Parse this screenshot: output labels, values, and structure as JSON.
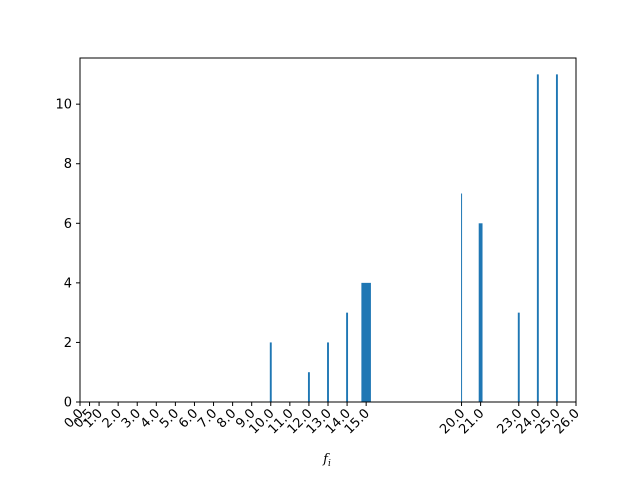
{
  "chart_data": {
    "type": "bar",
    "title": "",
    "xlabel": "f",
    "xlabel_sub": "i",
    "ylabel": "",
    "xlim": [
      0,
      26
    ],
    "ylim": [
      0,
      11.55
    ],
    "x_ticks": [
      0.0,
      0.5,
      1.0,
      2.0,
      3.0,
      4.0,
      5.0,
      6.0,
      7.0,
      8.0,
      9.0,
      10.0,
      11.0,
      12.0,
      13.0,
      14.0,
      15.0,
      20.0,
      21.0,
      23.0,
      24.0,
      25.0,
      26.0
    ],
    "x_tick_labels": [
      "0.0",
      "0.5",
      "1.0",
      "2.0",
      "3.0",
      "4.0",
      "5.0",
      "6.0",
      "7.0",
      "8.0",
      "9.0",
      "10.0",
      "11.0",
      "12.0",
      "13.0",
      "14.0",
      "15.0",
      "20.0",
      "21.0",
      "23.0",
      "24.0",
      "25.0",
      "26.0"
    ],
    "y_ticks": [
      0,
      2,
      4,
      6,
      8,
      10
    ],
    "y_tick_labels": [
      "0",
      "2",
      "4",
      "6",
      "8",
      "10"
    ],
    "bar_color": "#1f77b4",
    "bars": [
      {
        "x": 10.0,
        "width": 0.1,
        "value": 2
      },
      {
        "x": 12.0,
        "width": 0.1,
        "value": 1
      },
      {
        "x": 13.0,
        "width": 0.1,
        "value": 2
      },
      {
        "x": 14.0,
        "width": 0.1,
        "value": 3
      },
      {
        "x": 15.0,
        "width": 0.5,
        "value": 4
      },
      {
        "x": 20.0,
        "width": 0.05,
        "value": 7
      },
      {
        "x": 21.0,
        "width": 0.2,
        "value": 6
      },
      {
        "x": 23.0,
        "width": 0.1,
        "value": 3
      },
      {
        "x": 24.0,
        "width": 0.1,
        "value": 11
      },
      {
        "x": 25.0,
        "width": 0.1,
        "value": 11
      }
    ]
  }
}
